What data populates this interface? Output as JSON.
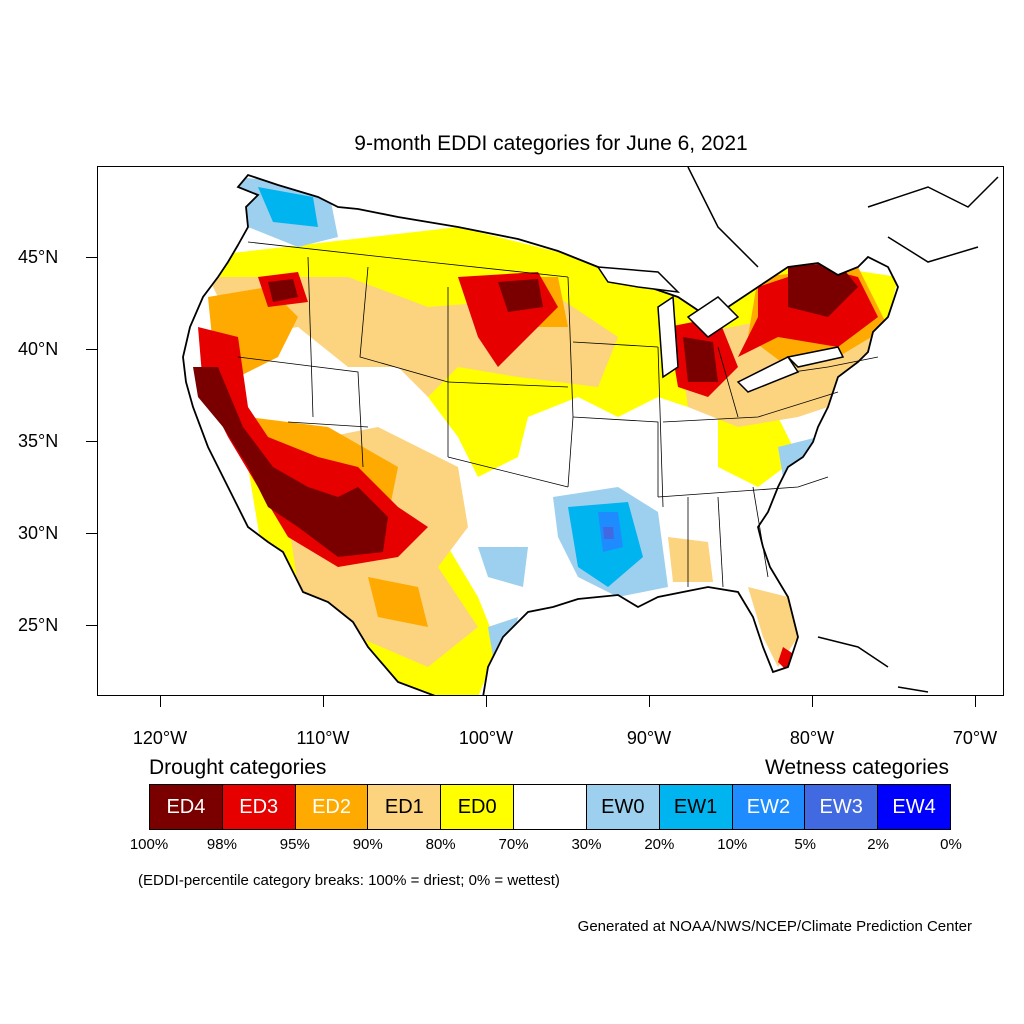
{
  "title": "9-month EDDI categories for June 6, 2021",
  "axes": {
    "lat_labels": [
      "45°N",
      "40°N",
      "35°N",
      "30°N",
      "25°N"
    ],
    "lon_labels": [
      "120°W",
      "110°W",
      "100°W",
      "90°W",
      "80°W",
      "70°W"
    ]
  },
  "legend": {
    "drought_heading": "Drought categories",
    "wetness_heading": "Wetness categories",
    "categories": [
      {
        "label": "ED4",
        "color": "#7a0000",
        "text_color": "#ffffff"
      },
      {
        "label": "ED3",
        "color": "#e60000",
        "text_color": "#ffffff"
      },
      {
        "label": "ED2",
        "color": "#ffaa00",
        "text_color": "#ffffff"
      },
      {
        "label": "ED1",
        "color": "#fcd37f",
        "text_color": "#000000"
      },
      {
        "label": "ED0",
        "color": "#ffff00",
        "text_color": "#000000"
      },
      {
        "label": "",
        "color": "#ffffff",
        "text_color": "#000000"
      },
      {
        "label": "EW0",
        "color": "#9dd0ef",
        "text_color": "#000000"
      },
      {
        "label": "EW1",
        "color": "#00b4f0",
        "text_color": "#000000"
      },
      {
        "label": "EW2",
        "color": "#1e8cff",
        "text_color": "#ffffff"
      },
      {
        "label": "EW3",
        "color": "#4169e1",
        "text_color": "#ffffff"
      },
      {
        "label": "EW4",
        "color": "#0000ff",
        "text_color": "#ffffff"
      }
    ],
    "percent_breaks": [
      "100%",
      "98%",
      "95%",
      "90%",
      "80%",
      "70%",
      "30%",
      "20%",
      "10%",
      "5%",
      "2%",
      "0%"
    ]
  },
  "note": "(EDDI-percentile category breaks: 100% = driest; 0% = wettest)",
  "credit": "Generated at NOAA/NWS/NCEP/Climate Prediction Center"
}
